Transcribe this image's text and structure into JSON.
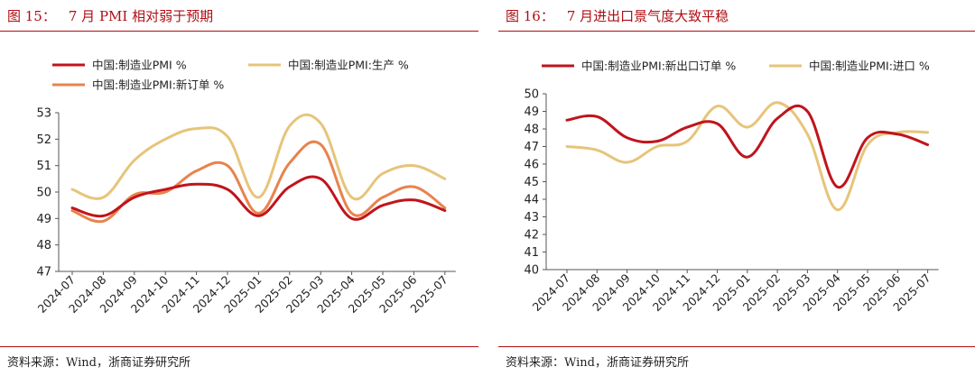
{
  "charts": [
    {
      "fig_label": "图 15：",
      "title": "7 月 PMI 相对弱于预期",
      "source": "资料来源：Wind，浙商证券研究所"
    },
    {
      "fig_label": "图 16：",
      "title": "7 月进出口景气度大致平稳",
      "source": "资料来源：Wind，浙商证券研究所"
    }
  ],
  "chart_data": [
    {
      "type": "line",
      "title": "7 月 PMI 相对弱于预期",
      "x": [
        "2024-07",
        "2024-08",
        "2024-09",
        "2024-10",
        "2024-11",
        "2024-12",
        "2025-01",
        "2025-02",
        "2025-03",
        "2025-04",
        "2025-05",
        "2025-06",
        "2025-07"
      ],
      "ylim": [
        47,
        53
      ],
      "yticks": [
        47,
        48,
        49,
        50,
        51,
        52,
        53
      ],
      "legend_position": "top",
      "grid": false,
      "series": [
        {
          "name": "中国:制造业PMI %",
          "color": "#c0141c",
          "values": [
            49.4,
            49.1,
            49.8,
            50.1,
            50.3,
            50.1,
            49.1,
            50.2,
            50.5,
            49.0,
            49.5,
            49.7,
            49.3
          ]
        },
        {
          "name": "中国:制造业PMI:生产 %",
          "color": "#e6c47a",
          "values": [
            50.1,
            49.8,
            51.2,
            52.0,
            52.4,
            52.1,
            49.8,
            52.5,
            52.6,
            49.8,
            50.7,
            51.0,
            50.5
          ]
        },
        {
          "name": "中国:制造业PMI:新订单 %",
          "color": "#e8834d",
          "values": [
            49.3,
            48.9,
            49.9,
            50.0,
            50.8,
            51.0,
            49.2,
            51.1,
            51.8,
            49.2,
            49.8,
            50.2,
            49.4
          ]
        }
      ]
    },
    {
      "type": "line",
      "title": "7 月进出口景气度大致平稳",
      "x": [
        "2024-07",
        "2024-08",
        "2024-09",
        "2024-10",
        "2024-11",
        "2024-12",
        "2025-01",
        "2025-02",
        "2025-03",
        "2025-04",
        "2025-05",
        "2025-06",
        "2025-07"
      ],
      "ylim": [
        40,
        50
      ],
      "yticks": [
        40,
        41,
        42,
        43,
        44,
        45,
        46,
        47,
        48,
        49,
        50
      ],
      "legend_position": "top",
      "grid": false,
      "series": [
        {
          "name": "中国:制造业PMI:新出口订单 %",
          "color": "#c0141c",
          "values": [
            48.5,
            48.7,
            47.5,
            47.3,
            48.1,
            48.3,
            46.4,
            48.6,
            49.0,
            44.7,
            47.5,
            47.7,
            47.1
          ]
        },
        {
          "name": "中国:制造业PMI:进口 %",
          "color": "#e6c47a",
          "values": [
            47.0,
            46.8,
            46.1,
            47.0,
            47.3,
            49.3,
            48.1,
            49.5,
            47.7,
            43.4,
            47.1,
            47.8,
            47.8
          ]
        }
      ]
    }
  ]
}
